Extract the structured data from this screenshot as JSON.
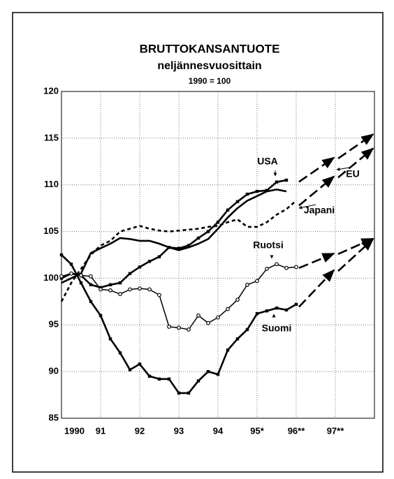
{
  "chart_data": {
    "type": "line",
    "title": "BRUTTOKANSANTUOTE",
    "subtitle": "neljännesvuosittain",
    "note": "1990 = 100",
    "x": [
      1990,
      1990.25,
      1990.5,
      1990.75,
      1991,
      1991.25,
      1991.5,
      1991.75,
      1992,
      1992.25,
      1992.5,
      1992.75,
      1993,
      1993.25,
      1993.5,
      1993.75,
      1994,
      1994.25,
      1994.5,
      1994.75,
      1995,
      1995.25,
      1995.5,
      1995.75,
      1996
    ],
    "forecast_x": [
      1996,
      1997,
      1998
    ],
    "series": [
      {
        "name": "USA",
        "color": "#000000",
        "style": "solid",
        "marker": "square",
        "values": [
          100,
          100.5,
          100.3,
          99.3,
          99.0,
          99.3,
          99.5,
          100.5,
          101.2,
          101.8,
          102.3,
          103.3,
          103.2,
          103.5,
          104.3,
          105.0,
          106,
          107.3,
          108.2,
          109.0,
          109.3,
          109.4,
          110.3,
          110.5,
          null
        ],
        "forecast": [
          110.5,
          113,
          115.5
        ]
      },
      {
        "name": "EU",
        "color": "#000000",
        "style": "solid",
        "marker": "none",
        "values": [
          99.5,
          100,
          100.5,
          102.7,
          103.2,
          103.7,
          104.3,
          104.2,
          104.0,
          104.0,
          103.7,
          103.3,
          103.0,
          103.3,
          103.7,
          104.2,
          105.3,
          106.5,
          107.5,
          108.3,
          108.8,
          109.3,
          109.5,
          109.3,
          null
        ],
        "forecast": [
          108,
          111,
          114
        ]
      },
      {
        "name": "Japani",
        "color": "#000000",
        "style": "dashed",
        "marker": "none",
        "values": [
          97.5,
          99.5,
          101,
          102.5,
          103.5,
          104,
          105,
          105.3,
          105.6,
          105.3,
          105.1,
          105.0,
          105.1,
          105.2,
          105.3,
          105.5,
          105.6,
          106,
          106.3,
          105.5,
          105.5,
          106,
          106.8,
          107.4,
          108.3
        ],
        "forecast": [
          null,
          null,
          null
        ]
      },
      {
        "name": "Ruotsi",
        "color": "#000000",
        "style": "solid",
        "marker": "circle",
        "values": [
          100.2,
          100.5,
          100.3,
          100.2,
          98.8,
          98.7,
          98.3,
          98.8,
          98.9,
          98.8,
          98.2,
          94.8,
          94.7,
          94.5,
          96,
          95.2,
          95.8,
          96.7,
          97.7,
          99.3,
          99.7,
          101.0,
          101.5,
          101.1,
          101.2
        ],
        "forecast": [
          101.2,
          102.7,
          104.3
        ]
      },
      {
        "name": "Suomi",
        "color": "#000000",
        "style": "solid",
        "marker": "square",
        "values": [
          102.5,
          101.5,
          99.5,
          97.5,
          96,
          93.5,
          92,
          90.2,
          90.8,
          89.5,
          89.2,
          89.2,
          87.7,
          87.7,
          89,
          90,
          89.7,
          92.3,
          93.5,
          94.5,
          96.2,
          96.5,
          96.8,
          96.6,
          97.2
        ],
        "forecast": [
          97.2,
          101,
          104.3
        ]
      }
    ],
    "xlim": [
      1990,
      1998
    ],
    "xticks": [
      {
        "value": 1990,
        "label": "1990"
      },
      {
        "value": 1991,
        "label": "91"
      },
      {
        "value": 1992,
        "label": "92"
      },
      {
        "value": 1993,
        "label": "93"
      },
      {
        "value": 1994,
        "label": "94"
      },
      {
        "value": 1995,
        "label": "95*"
      },
      {
        "value": 1996,
        "label": "96**"
      },
      {
        "value": 1997,
        "label": "97**"
      }
    ],
    "ylim": [
      85,
      120
    ],
    "yticks": [
      85,
      90,
      95,
      100,
      105,
      110,
      115,
      120
    ],
    "grid": true
  }
}
